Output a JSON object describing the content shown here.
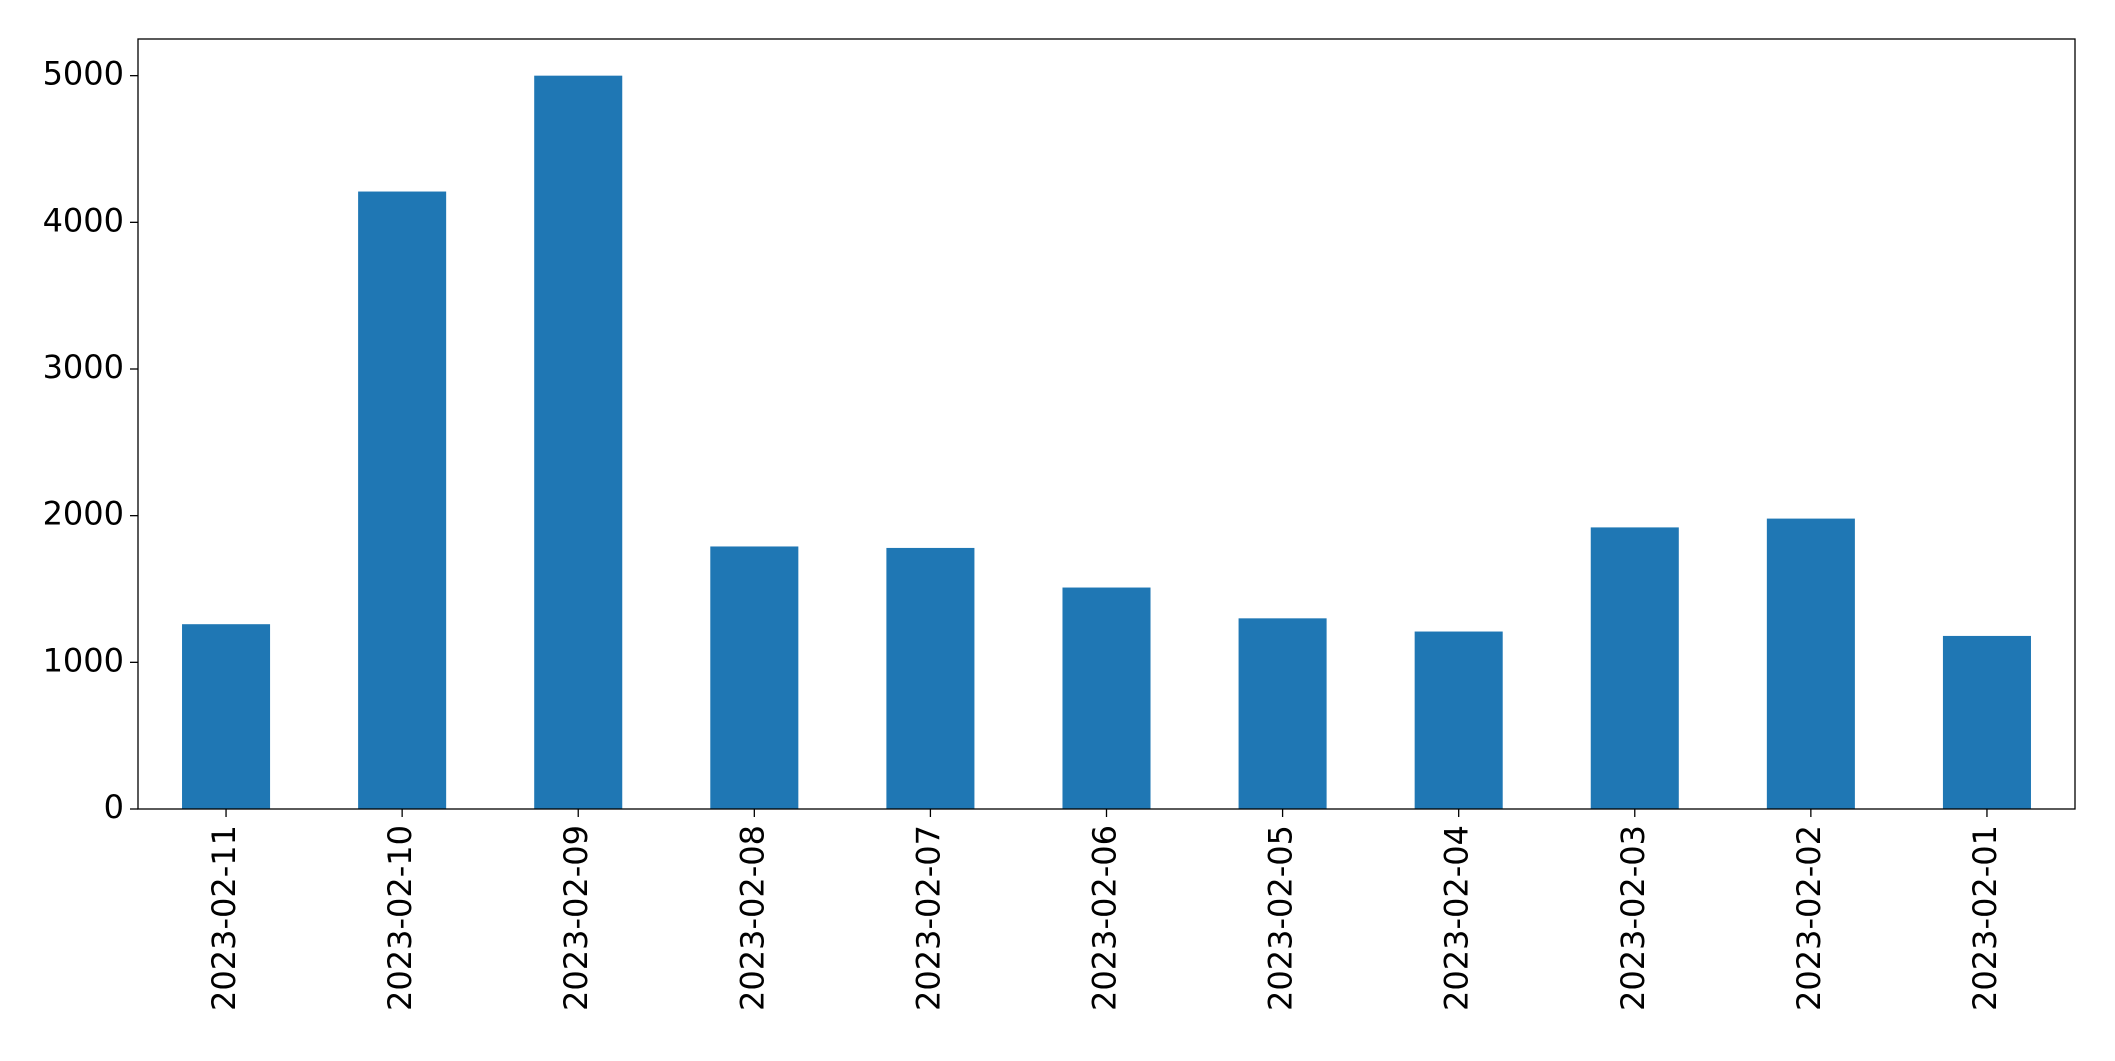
{
  "chart_data": {
    "type": "bar",
    "categories": [
      "2023-02-11",
      "2023-02-10",
      "2023-02-09",
      "2023-02-08",
      "2023-02-07",
      "2023-02-06",
      "2023-02-05",
      "2023-02-04",
      "2023-02-03",
      "2023-02-02",
      "2023-02-01"
    ],
    "values": [
      1260,
      4210,
      5000,
      1790,
      1780,
      1510,
      1300,
      1210,
      1920,
      1980,
      1180
    ],
    "color": "#1f77b4",
    "ylim": [
      0,
      5250
    ],
    "yticks": [
      0,
      1000,
      2000,
      3000,
      4000,
      5000
    ],
    "grid": false
  }
}
